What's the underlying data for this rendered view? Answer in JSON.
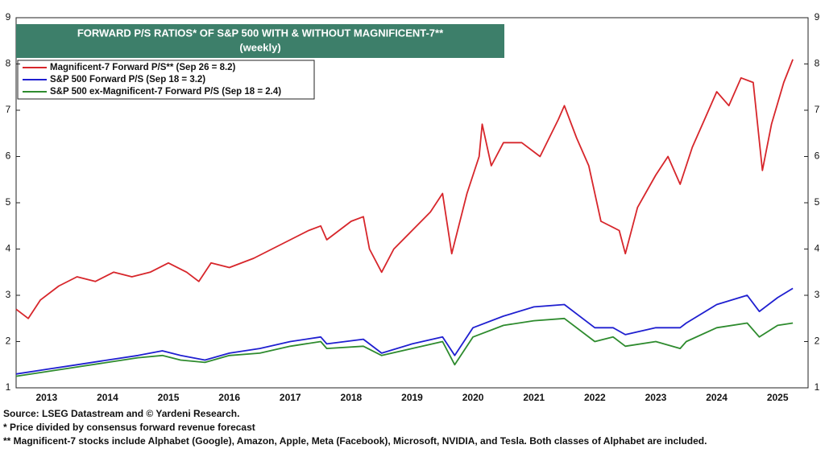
{
  "chart_data": {
    "type": "line",
    "title": "FORWARD P/S RATIOS* OF S&P 500 WITH & WITHOUT MAGNIFICENT-7**",
    "subtitle": "(weekly)",
    "xlim": [
      2013,
      2026
    ],
    "xticks": [
      {
        "value": 2013.5,
        "label": "2013"
      },
      {
        "value": 2014.5,
        "label": "2014"
      },
      {
        "value": 2015.5,
        "label": "2015"
      },
      {
        "value": 2016.5,
        "label": "2016"
      },
      {
        "value": 2017.5,
        "label": "2017"
      },
      {
        "value": 2018.5,
        "label": "2018"
      },
      {
        "value": 2019.5,
        "label": "2019"
      },
      {
        "value": 2020.5,
        "label": "2020"
      },
      {
        "value": 2021.5,
        "label": "2021"
      },
      {
        "value": 2022.5,
        "label": "2022"
      },
      {
        "value": 2023.5,
        "label": "2023"
      },
      {
        "value": 2024.5,
        "label": "2024"
      },
      {
        "value": 2025.5,
        "label": "2025"
      }
    ],
    "ylim": [
      1,
      9
    ],
    "yticks": [
      1,
      2,
      3,
      4,
      5,
      6,
      7,
      8,
      9
    ],
    "series": [
      {
        "name": "Magnificent-7 Forward P/S** (Sep 26 = 8.2)",
        "color": "#d7262b",
        "x": [
          2013.0,
          2013.2,
          2013.4,
          2013.7,
          2014.0,
          2014.3,
          2014.6,
          2014.9,
          2015.2,
          2015.5,
          2015.8,
          2016.0,
          2016.2,
          2016.5,
          2016.9,
          2017.2,
          2017.5,
          2017.8,
          2018.0,
          2018.1,
          2018.5,
          2018.7,
          2018.8,
          2019.0,
          2019.2,
          2019.5,
          2019.8,
          2020.0,
          2020.15,
          2020.4,
          2020.6,
          2020.65,
          2020.8,
          2021.0,
          2021.3,
          2021.6,
          2021.9,
          2022.0,
          2022.2,
          2022.4,
          2022.6,
          2022.9,
          2023.0,
          2023.2,
          2023.5,
          2023.7,
          2023.9,
          2024.1,
          2024.3,
          2024.5,
          2024.7,
          2024.9,
          2025.1,
          2025.25,
          2025.4,
          2025.6,
          2025.75
        ],
        "values": [
          2.7,
          2.5,
          2.9,
          3.2,
          3.4,
          3.3,
          3.5,
          3.4,
          3.5,
          3.7,
          3.5,
          3.3,
          3.7,
          3.6,
          3.8,
          4.0,
          4.2,
          4.4,
          4.5,
          4.2,
          4.6,
          4.7,
          4.0,
          3.5,
          4.0,
          4.4,
          4.8,
          5.2,
          3.9,
          5.2,
          6.0,
          6.7,
          5.8,
          6.3,
          6.3,
          6.0,
          6.8,
          7.1,
          6.4,
          5.8,
          4.6,
          4.4,
          3.9,
          4.9,
          5.6,
          6.0,
          5.4,
          6.2,
          6.8,
          7.4,
          7.1,
          7.7,
          7.6,
          5.7,
          6.7,
          7.6,
          8.1
        ]
      },
      {
        "name": "S&P 500 Forward P/S (Sep 18 = 3.2)",
        "color": "#1f1fd0",
        "x": [
          2013.0,
          2013.5,
          2014.0,
          2014.5,
          2015.0,
          2015.4,
          2015.7,
          2016.1,
          2016.5,
          2017.0,
          2017.5,
          2018.0,
          2018.1,
          2018.7,
          2019.0,
          2019.5,
          2020.0,
          2020.2,
          2020.5,
          2021.0,
          2021.5,
          2022.0,
          2022.5,
          2022.8,
          2023.0,
          2023.5,
          2023.9,
          2024.0,
          2024.5,
          2025.0,
          2025.2,
          2025.5,
          2025.75
        ],
        "values": [
          1.3,
          1.4,
          1.5,
          1.6,
          1.7,
          1.8,
          1.7,
          1.6,
          1.75,
          1.85,
          2.0,
          2.1,
          1.95,
          2.05,
          1.75,
          1.95,
          2.1,
          1.7,
          2.3,
          2.55,
          2.75,
          2.8,
          2.3,
          2.3,
          2.15,
          2.3,
          2.3,
          2.4,
          2.8,
          3.0,
          2.65,
          2.95,
          3.15
        ]
      },
      {
        "name": "S&P 500 ex-Magnificent-7 Forward P/S (Sep 18 = 2.4)",
        "color": "#2e8b2e",
        "x": [
          2013.0,
          2013.5,
          2014.0,
          2014.5,
          2015.0,
          2015.4,
          2015.7,
          2016.1,
          2016.5,
          2017.0,
          2017.5,
          2018.0,
          2018.1,
          2018.7,
          2019.0,
          2019.5,
          2020.0,
          2020.2,
          2020.5,
          2021.0,
          2021.5,
          2022.0,
          2022.5,
          2022.8,
          2023.0,
          2023.5,
          2023.9,
          2024.0,
          2024.5,
          2025.0,
          2025.2,
          2025.5,
          2025.75
        ],
        "values": [
          1.25,
          1.35,
          1.45,
          1.55,
          1.65,
          1.7,
          1.6,
          1.55,
          1.7,
          1.75,
          1.9,
          2.0,
          1.85,
          1.9,
          1.7,
          1.85,
          2.0,
          1.5,
          2.1,
          2.35,
          2.45,
          2.5,
          2.0,
          2.1,
          1.9,
          2.0,
          1.85,
          2.0,
          2.3,
          2.4,
          2.1,
          2.35,
          2.4
        ]
      }
    ],
    "notes": [
      "Source: LSEG Datastream and © Yardeni Research.",
      "* Price divided by consensus forward revenue forecast",
      "** Magnificent-7 stocks include Alphabet (Google), Amazon, Apple, Meta (Facebook), Microsoft, NVIDIA, and Tesla. Both classes of Alphabet are included."
    ]
  }
}
